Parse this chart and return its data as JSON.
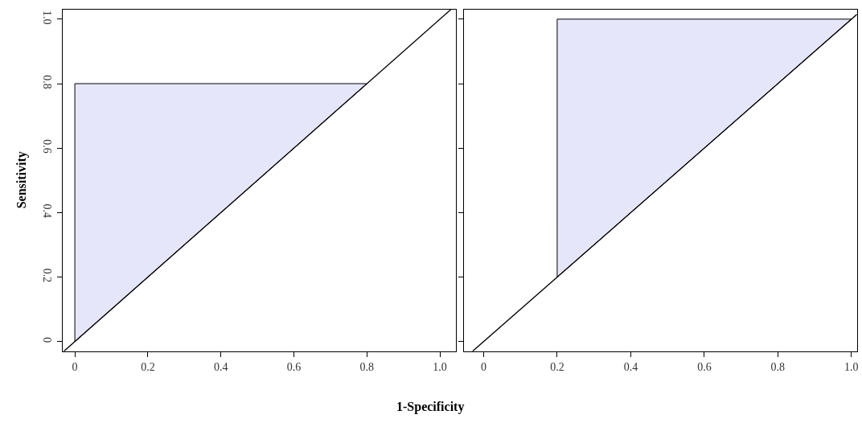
{
  "chart_data": [
    {
      "type": "line",
      "ylabel": "Sensitivity",
      "xlabel": "1-Specificity",
      "xlim": [
        -0.033,
        1.044
      ],
      "ylim": [
        -0.03,
        1.03
      ],
      "xticks": [
        0,
        0.2,
        0.4,
        0.6,
        0.8,
        {
          "value": 1,
          "label": "1.0"
        }
      ],
      "yticks": [
        0,
        0.2,
        0.4,
        0.6,
        0.8,
        {
          "value": 1,
          "label": "1.0"
        }
      ],
      "series": [
        {
          "type": "area",
          "color": "#e6e6fa",
          "x": [
            0,
            0,
            0.8,
            0
          ],
          "values": [
            0,
            0.8,
            0.8,
            0
          ]
        },
        {
          "color": "#000000",
          "x": [
            -0.03,
            1.03
          ],
          "values": [
            -0.03,
            1.03
          ]
        }
      ]
    },
    {
      "type": "line",
      "xlim": [
        -0.054,
        1.015
      ],
      "ylim": [
        -0.03,
        1.03
      ],
      "xticks": [
        0,
        0.2,
        0.4,
        0.6,
        0.8,
        {
          "value": 1,
          "label": "1.0"
        }
      ],
      "yticks": [
        0,
        0.2,
        0.4,
        0.6,
        0.8,
        1
      ],
      "tick_labels": "x",
      "series": [
        {
          "type": "area",
          "color": "#e6e6fa",
          "x": [
            0.2,
            0.2,
            1.0,
            0.2
          ],
          "values": [
            0.2,
            1.0,
            1.0,
            0.2
          ]
        },
        {
          "color": "#000000",
          "x": [
            -0.03,
            1.015
          ],
          "values": [
            -0.03,
            1.015
          ]
        }
      ]
    }
  ]
}
